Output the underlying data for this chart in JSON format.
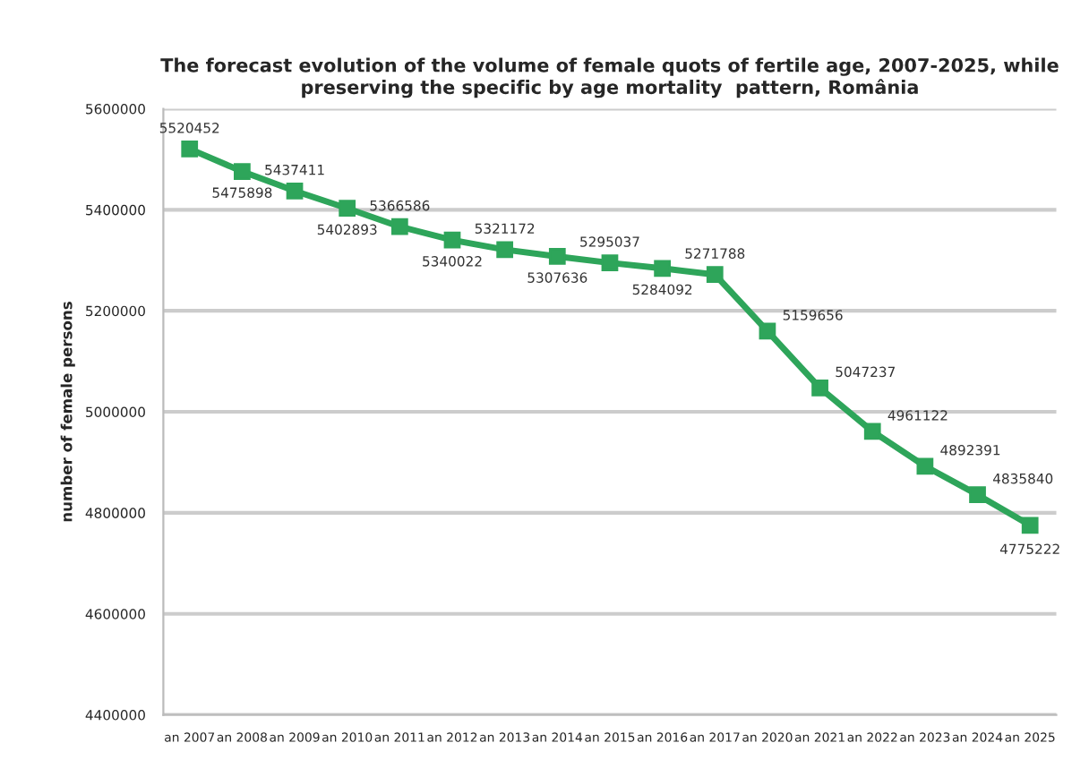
{
  "chart_data": {
    "type": "line",
    "title": "The forecast evolution of the volume of female quots of fertile age, 2007-2025, while\npreserving the specific by age mortality  pattern, România",
    "ylabel": "number of female persons",
    "categories": [
      "an 2007",
      "an 2008",
      "an 2009",
      "an 2010",
      "an 2011",
      "an 2012",
      "an 2013",
      "an 2014",
      "an 2015",
      "an 2016",
      "an 2017",
      "an 2020",
      "an 2021",
      "an 2022",
      "an 2023",
      "an 2024",
      "an 2025"
    ],
    "series": [
      {
        "color": "#2ea55a",
        "values": [
          5520452,
          5475898,
          5437411,
          5402893,
          5366586,
          5340022,
          5321172,
          5307636,
          5295037,
          5284092,
          5271788,
          5159656,
          5047237,
          4961122,
          4892391,
          4835840,
          4775222
        ]
      }
    ],
    "ylim": [
      4400000,
      5600000
    ],
    "yticks": [
      4400000,
      4600000,
      4800000,
      5000000,
      5200000,
      5400000,
      5600000
    ],
    "grid": "y",
    "marker": "square",
    "line_style": "solid",
    "data_labels": true,
    "legend": false
  }
}
